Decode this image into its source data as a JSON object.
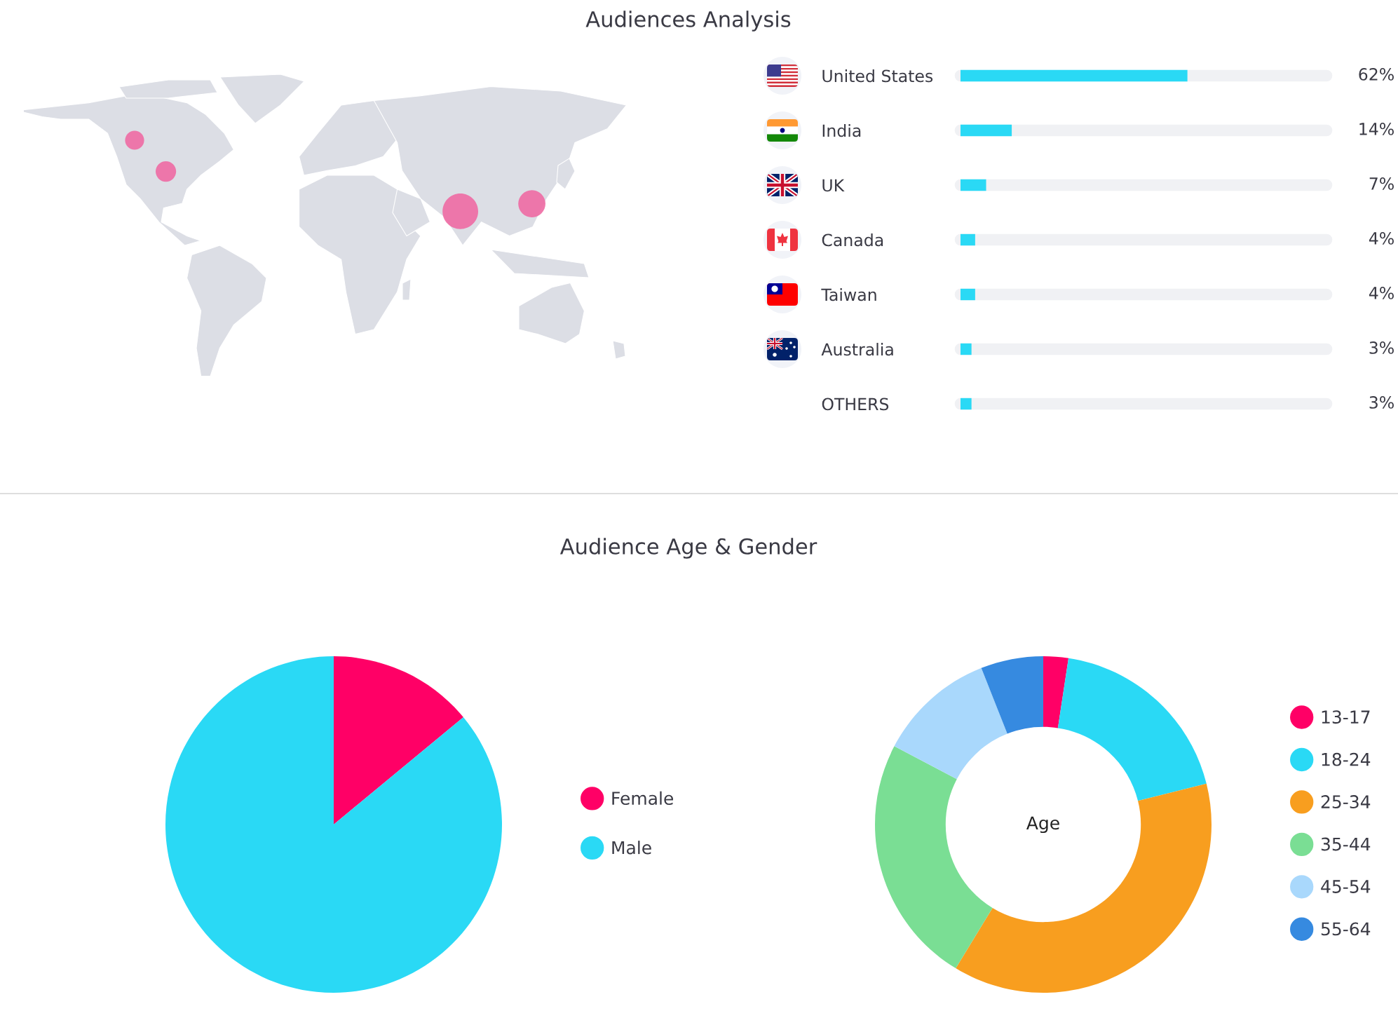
{
  "chart_data": [
    {
      "type": "bar",
      "orientation": "horizontal",
      "title": "Audiences Analysis",
      "categories": [
        "United States",
        "India",
        "UK",
        "Canada",
        "Taiwan",
        "Australia",
        "OTHERS"
      ],
      "values": [
        62,
        14,
        7,
        4,
        4,
        3,
        3
      ],
      "value_labels": [
        "62%",
        "14%",
        "7%",
        "4%",
        "4%",
        "3%",
        "3%"
      ],
      "color": "#2ad9f5",
      "xlim": [
        0,
        100
      ],
      "tick_labels": "y"
    },
    {
      "type": "pie",
      "title": "Audience Age & Gender",
      "categories": [
        "Female",
        "Male"
      ],
      "values": [
        14,
        86
      ],
      "colors": [
        "#ff0066",
        "#2ad9f5"
      ],
      "legend": "right"
    },
    {
      "type": "donut",
      "title": "Age",
      "categories": [
        "13-17",
        "18-24",
        "25-34",
        "35-44",
        "45-54",
        "55-64"
      ],
      "values": [
        2.4,
        18.7,
        37.6,
        24.0,
        11.3,
        6.0
      ],
      "colors": [
        "#ff0066",
        "#2ad9f5",
        "#f89e1f",
        "#7ade94",
        "#a9d8fc",
        "#368ae0"
      ],
      "legend": "right"
    }
  ]
}
